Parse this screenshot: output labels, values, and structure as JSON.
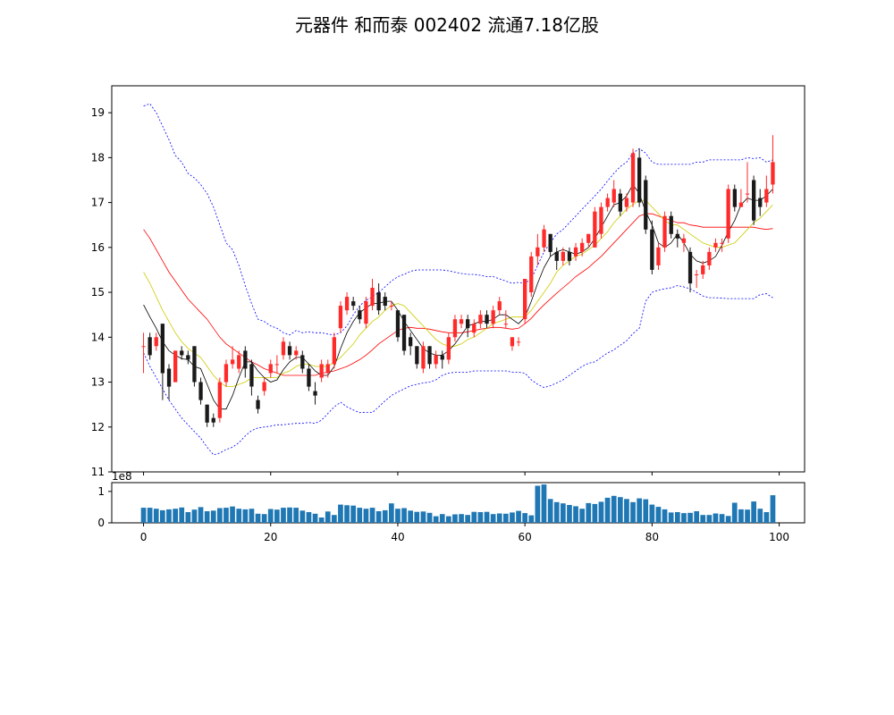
{
  "title": "元器件  和而泰  002402  流通7.18亿股",
  "chart_data": [
    {
      "type": "candlestick",
      "panel": "price",
      "ylim": [
        11,
        19.6
      ],
      "xlim": [
        -5,
        104
      ],
      "yticks": [
        11,
        12,
        13,
        14,
        15,
        16,
        17,
        18,
        19
      ],
      "up_color": "#ff2a2a",
      "down_color": "#1a1a1a",
      "overlay_colors": {
        "ma5": "#000000",
        "ma10": "#cccc00",
        "ma20": "#ff0000",
        "upper": "#0000ff",
        "lower": "#0000ff"
      },
      "x": [
        0,
        1,
        2,
        3,
        4,
        5,
        6,
        7,
        8,
        9,
        10,
        11,
        12,
        13,
        14,
        15,
        16,
        17,
        18,
        19,
        20,
        21,
        22,
        23,
        24,
        25,
        26,
        27,
        28,
        29,
        30,
        31,
        32,
        33,
        34,
        35,
        36,
        37,
        38,
        39,
        40,
        41,
        42,
        43,
        44,
        45,
        46,
        47,
        48,
        49,
        50,
        51,
        52,
        53,
        54,
        55,
        56,
        57,
        58,
        59,
        60,
        61,
        62,
        63,
        64,
        65,
        66,
        67,
        68,
        69,
        70,
        71,
        72,
        73,
        74,
        75,
        76,
        77,
        78,
        79,
        80,
        81,
        82,
        83,
        84,
        85,
        86,
        87,
        88,
        89,
        90,
        91,
        92,
        93,
        94,
        95,
        96,
        97,
        98,
        99
      ],
      "open": [
        13.8,
        14.0,
        13.8,
        14.3,
        13.3,
        13.0,
        13.7,
        13.6,
        13.8,
        13.0,
        12.5,
        12.2,
        12.2,
        13.0,
        13.4,
        13.3,
        13.7,
        13.4,
        12.6,
        12.8,
        13.2,
        13.4,
        13.6,
        13.8,
        13.6,
        13.6,
        13.3,
        12.8,
        13.1,
        13.2,
        13.4,
        14.2,
        14.6,
        14.8,
        14.6,
        14.3,
        14.7,
        15.0,
        14.9,
        14.7,
        14.6,
        14.5,
        14.0,
        13.8,
        13.3,
        13.8,
        13.4,
        13.6,
        13.5,
        14.0,
        14.3,
        14.4,
        14.1,
        14.3,
        14.5,
        14.3,
        14.6,
        14.3,
        13.8,
        13.9,
        14.4,
        15.0,
        15.8,
        16.0,
        16.3,
        15.9,
        15.7,
        15.9,
        15.8,
        15.9,
        16.1,
        16.0,
        16.3,
        16.9,
        17.0,
        17.2,
        16.9,
        17.0,
        18.0,
        17.5,
        16.4,
        15.6,
        16.0,
        16.7,
        16.3,
        16.1,
        15.9,
        15.4,
        15.4,
        15.6,
        16.0,
        16.1,
        16.2,
        17.3,
        16.9,
        17.2,
        17.5,
        17.1,
        17.0,
        17.4
      ],
      "close": [
        13.8,
        13.6,
        14.0,
        13.2,
        12.9,
        13.7,
        13.6,
        13.5,
        13.0,
        12.6,
        12.1,
        12.1,
        13.0,
        13.4,
        13.5,
        13.6,
        13.3,
        12.9,
        12.4,
        13.0,
        13.4,
        13.4,
        13.9,
        13.6,
        13.7,
        13.3,
        12.9,
        12.7,
        13.4,
        13.4,
        14.0,
        14.7,
        14.9,
        14.7,
        14.4,
        14.8,
        15.1,
        14.6,
        14.7,
        14.7,
        14.0,
        13.7,
        13.8,
        13.4,
        13.8,
        13.4,
        13.6,
        13.5,
        14.0,
        14.4,
        14.4,
        14.2,
        14.3,
        14.5,
        14.3,
        14.6,
        14.8,
        14.3,
        14.0,
        13.9,
        15.3,
        15.8,
        16.0,
        16.4,
        15.9,
        15.7,
        15.9,
        15.7,
        16.0,
        16.1,
        16.3,
        16.8,
        16.9,
        17.1,
        17.3,
        16.8,
        17.1,
        18.1,
        17.0,
        16.4,
        15.5,
        16.0,
        16.7,
        16.3,
        16.2,
        16.2,
        15.2,
        15.4,
        15.6,
        15.9,
        16.1,
        16.1,
        17.3,
        16.9,
        17.0,
        17.2,
        16.6,
        16.9,
        17.3,
        17.9
      ],
      "high": [
        14.1,
        14.1,
        14.1,
        14.3,
        13.4,
        13.7,
        13.8,
        13.7,
        13.8,
        13.1,
        12.5,
        12.3,
        13.1,
        13.5,
        13.8,
        13.7,
        13.8,
        13.5,
        12.7,
        13.1,
        13.5,
        13.6,
        14.0,
        13.9,
        13.8,
        13.7,
        13.4,
        13.0,
        13.5,
        13.5,
        14.1,
        14.8,
        15.0,
        14.9,
        14.7,
        14.9,
        15.3,
        15.2,
        15.0,
        14.8,
        14.6,
        14.5,
        14.1,
        13.8,
        13.9,
        13.8,
        13.7,
        13.7,
        14.1,
        14.5,
        14.5,
        14.5,
        14.4,
        14.6,
        14.6,
        14.7,
        14.9,
        14.6,
        14.0,
        14.0,
        15.3,
        15.9,
        16.3,
        16.5,
        16.3,
        16.0,
        16.0,
        16.0,
        16.1,
        16.2,
        16.3,
        16.9,
        17.0,
        17.2,
        17.5,
        17.3,
        17.2,
        18.2,
        18.2,
        17.6,
        16.6,
        16.1,
        16.8,
        16.8,
        16.4,
        16.3,
        16.0,
        15.5,
        15.7,
        16.0,
        16.2,
        16.2,
        17.4,
        17.4,
        17.3,
        17.9,
        17.6,
        17.3,
        17.6,
        18.5
      ],
      "low": [
        13.2,
        13.5,
        13.7,
        12.6,
        12.6,
        13.0,
        13.5,
        13.4,
        12.9,
        12.5,
        12.0,
        12.0,
        12.1,
        12.9,
        13.3,
        13.2,
        13.1,
        12.7,
        12.3,
        12.7,
        13.1,
        13.2,
        13.5,
        13.5,
        13.5,
        13.2,
        12.8,
        12.5,
        13.0,
        13.1,
        13.3,
        14.1,
        14.5,
        14.6,
        14.3,
        14.2,
        14.6,
        14.5,
        14.6,
        14.6,
        13.9,
        13.6,
        13.6,
        13.3,
        13.2,
        13.3,
        13.3,
        13.3,
        13.4,
        13.9,
        14.2,
        14.0,
        14.0,
        14.2,
        14.2,
        14.2,
        14.5,
        14.2,
        13.7,
        13.8,
        14.3,
        14.9,
        15.6,
        15.9,
        15.8,
        15.5,
        15.6,
        15.6,
        15.7,
        15.8,
        16.0,
        16.0,
        16.2,
        16.8,
        16.9,
        16.7,
        16.8,
        16.9,
        16.9,
        16.3,
        15.4,
        15.5,
        15.9,
        16.2,
        16.0,
        15.9,
        15.0,
        15.1,
        15.3,
        15.5,
        15.9,
        15.9,
        16.1,
        16.8,
        16.9,
        17.0,
        16.5,
        16.7,
        16.9,
        17.2
      ],
      "ma5": [
        14.72,
        14.45,
        14.2,
        13.9,
        13.7,
        13.6,
        13.52,
        13.5,
        13.35,
        13.3,
        12.95,
        12.6,
        12.4,
        12.4,
        12.7,
        13.1,
        13.45,
        13.45,
        13.25,
        13.1,
        13.0,
        13.05,
        13.28,
        13.45,
        13.55,
        13.55,
        13.4,
        13.25,
        13.15,
        13.15,
        13.35,
        13.75,
        14.1,
        14.35,
        14.55,
        14.65,
        14.75,
        14.75,
        14.8,
        14.8,
        14.6,
        14.35,
        14.15,
        13.95,
        13.75,
        13.65,
        13.6,
        13.6,
        13.7,
        13.85,
        14.05,
        14.25,
        14.3,
        14.35,
        14.35,
        14.4,
        14.5,
        14.5,
        14.4,
        14.3,
        14.45,
        14.8,
        15.2,
        15.55,
        15.8,
        15.9,
        15.95,
        15.9,
        15.85,
        15.9,
        16.0,
        16.2,
        16.45,
        16.7,
        16.95,
        17.0,
        17.15,
        17.4,
        17.2,
        16.8,
        16.5,
        16.1,
        16.0,
        16.1,
        16.3,
        16.1,
        15.85,
        15.7,
        15.65,
        15.7,
        15.8,
        16.05,
        16.35,
        16.6,
        16.95,
        17.1,
        17.05,
        17.05,
        17.15,
        17.3
      ],
      "ma10": [
        15.45,
        15.2,
        14.9,
        14.6,
        14.35,
        14.1,
        13.9,
        13.75,
        13.65,
        13.55,
        13.35,
        13.15,
        13.0,
        12.9,
        12.9,
        12.95,
        13.0,
        13.1,
        13.1,
        13.1,
        13.1,
        13.1,
        13.2,
        13.25,
        13.35,
        13.4,
        13.4,
        13.35,
        13.35,
        13.35,
        13.45,
        13.55,
        13.7,
        13.85,
        14.05,
        14.2,
        14.35,
        14.45,
        14.6,
        14.7,
        14.75,
        14.7,
        14.55,
        14.4,
        14.25,
        14.1,
        13.95,
        13.85,
        13.8,
        13.8,
        13.85,
        13.95,
        14.0,
        14.1,
        14.2,
        14.3,
        14.35,
        14.4,
        14.45,
        14.45,
        14.45,
        14.6,
        14.8,
        15.0,
        15.2,
        15.45,
        15.6,
        15.7,
        15.8,
        15.85,
        15.95,
        16.05,
        16.2,
        16.35,
        16.55,
        16.7,
        16.85,
        16.95,
        17.05,
        17.05,
        16.9,
        16.75,
        16.6,
        16.5,
        16.5,
        16.4,
        16.3,
        16.2,
        16.1,
        16.05,
        16.0,
        16.0,
        16.05,
        16.1,
        16.25,
        16.4,
        16.55,
        16.65,
        16.8,
        16.95
      ],
      "ma20": [
        16.4,
        16.2,
        15.95,
        15.7,
        15.45,
        15.25,
        15.05,
        14.85,
        14.7,
        14.55,
        14.4,
        14.2,
        14.0,
        13.85,
        13.75,
        13.65,
        13.55,
        13.45,
        13.38,
        13.3,
        13.25,
        13.2,
        13.15,
        13.15,
        13.15,
        13.15,
        13.15,
        13.15,
        13.2,
        13.22,
        13.25,
        13.3,
        13.35,
        13.42,
        13.5,
        13.6,
        13.72,
        13.85,
        13.95,
        14.05,
        14.15,
        14.2,
        14.22,
        14.2,
        14.2,
        14.18,
        14.15,
        14.12,
        14.1,
        14.1,
        14.1,
        14.12,
        14.15,
        14.18,
        14.2,
        14.22,
        14.22,
        14.2,
        14.18,
        14.2,
        14.3,
        14.42,
        14.58,
        14.72,
        14.85,
        14.98,
        15.1,
        15.22,
        15.35,
        15.45,
        15.55,
        15.68,
        15.8,
        15.95,
        16.1,
        16.25,
        16.4,
        16.55,
        16.7,
        16.75,
        16.75,
        16.7,
        16.65,
        16.6,
        16.55,
        16.55,
        16.5,
        16.48,
        16.45,
        16.45,
        16.45,
        16.45,
        16.45,
        16.45,
        16.45,
        16.45,
        16.45,
        16.42,
        16.4,
        16.42
      ],
      "upper": [
        19.15,
        19.2,
        19.0,
        18.7,
        18.4,
        18.05,
        17.9,
        17.65,
        17.55,
        17.4,
        17.2,
        16.9,
        16.5,
        16.1,
        15.95,
        15.6,
        15.15,
        14.75,
        14.4,
        14.35,
        14.25,
        14.2,
        14.1,
        14.05,
        14.15,
        14.1,
        14.12,
        14.1,
        14.1,
        14.07,
        14.05,
        14.1,
        14.25,
        14.5,
        14.7,
        14.82,
        14.9,
        15.0,
        15.12,
        15.25,
        15.35,
        15.4,
        15.47,
        15.5,
        15.5,
        15.5,
        15.5,
        15.5,
        15.48,
        15.45,
        15.42,
        15.4,
        15.4,
        15.38,
        15.35,
        15.35,
        15.3,
        15.25,
        15.2,
        15.22,
        15.2,
        15.3,
        15.6,
        15.9,
        16.1,
        16.3,
        16.4,
        16.55,
        16.7,
        16.85,
        17.0,
        17.15,
        17.3,
        17.48,
        17.65,
        17.8,
        17.9,
        18.1,
        18.2,
        18.1,
        17.9,
        17.85,
        17.85,
        17.85,
        17.85,
        17.85,
        17.85,
        17.9,
        17.9,
        17.95,
        17.95,
        17.95,
        17.95,
        17.95,
        17.95,
        18.0,
        17.98,
        18.0,
        17.9,
        17.95
      ],
      "lower": [
        13.65,
        13.35,
        13.1,
        12.85,
        12.6,
        12.4,
        12.2,
        12.05,
        11.9,
        11.75,
        11.55,
        11.38,
        11.42,
        11.5,
        11.55,
        11.65,
        11.8,
        11.92,
        11.98,
        12.0,
        12.02,
        12.05,
        12.05,
        12.07,
        12.08,
        12.08,
        12.1,
        12.08,
        12.15,
        12.3,
        12.45,
        12.55,
        12.45,
        12.38,
        12.32,
        12.33,
        12.32,
        12.45,
        12.58,
        12.7,
        12.78,
        12.85,
        12.92,
        12.95,
        12.98,
        13.0,
        13.05,
        13.15,
        13.2,
        13.22,
        13.22,
        13.22,
        13.25,
        13.25,
        13.25,
        13.25,
        13.25,
        13.25,
        13.22,
        13.22,
        13.2,
        13.05,
        12.95,
        12.88,
        12.92,
        12.98,
        13.05,
        13.15,
        13.25,
        13.35,
        13.42,
        13.45,
        13.55,
        13.65,
        13.72,
        13.82,
        13.92,
        14.08,
        14.2,
        14.8,
        15.0,
        15.05,
        15.08,
        15.1,
        15.15,
        15.12,
        15.08,
        15.0,
        14.92,
        14.88,
        14.88,
        14.87,
        14.86,
        14.86,
        14.86,
        14.86,
        14.86,
        14.95,
        14.97,
        14.88
      ]
    },
    {
      "type": "bar",
      "panel": "volume",
      "offset_label": "1e8",
      "ylim": [
        0,
        1.28
      ],
      "yticks": [
        0,
        1
      ],
      "xticks": [
        0,
        20,
        40,
        60,
        80,
        100
      ],
      "bar_color": "#1f77b4",
      "values": [
        0.48,
        0.48,
        0.45,
        0.4,
        0.43,
        0.45,
        0.49,
        0.34,
        0.42,
        0.5,
        0.37,
        0.39,
        0.47,
        0.48,
        0.52,
        0.45,
        0.43,
        0.45,
        0.29,
        0.28,
        0.44,
        0.42,
        0.48,
        0.49,
        0.48,
        0.39,
        0.34,
        0.29,
        0.17,
        0.36,
        0.25,
        0.58,
        0.56,
        0.55,
        0.48,
        0.45,
        0.48,
        0.37,
        0.4,
        0.62,
        0.45,
        0.47,
        0.39,
        0.35,
        0.36,
        0.32,
        0.21,
        0.28,
        0.21,
        0.27,
        0.28,
        0.25,
        0.35,
        0.34,
        0.35,
        0.28,
        0.3,
        0.29,
        0.33,
        0.38,
        0.31,
        0.24,
        1.18,
        1.22,
        0.76,
        0.66,
        0.62,
        0.57,
        0.53,
        0.45,
        0.63,
        0.6,
        0.67,
        0.8,
        0.86,
        0.82,
        0.76,
        0.66,
        0.78,
        0.75,
        0.58,
        0.51,
        0.43,
        0.33,
        0.34,
        0.31,
        0.32,
        0.37,
        0.25,
        0.25,
        0.3,
        0.28,
        0.22,
        0.64,
        0.43,
        0.42,
        0.68,
        0.45,
        0.34,
        0.88
      ]
    }
  ]
}
